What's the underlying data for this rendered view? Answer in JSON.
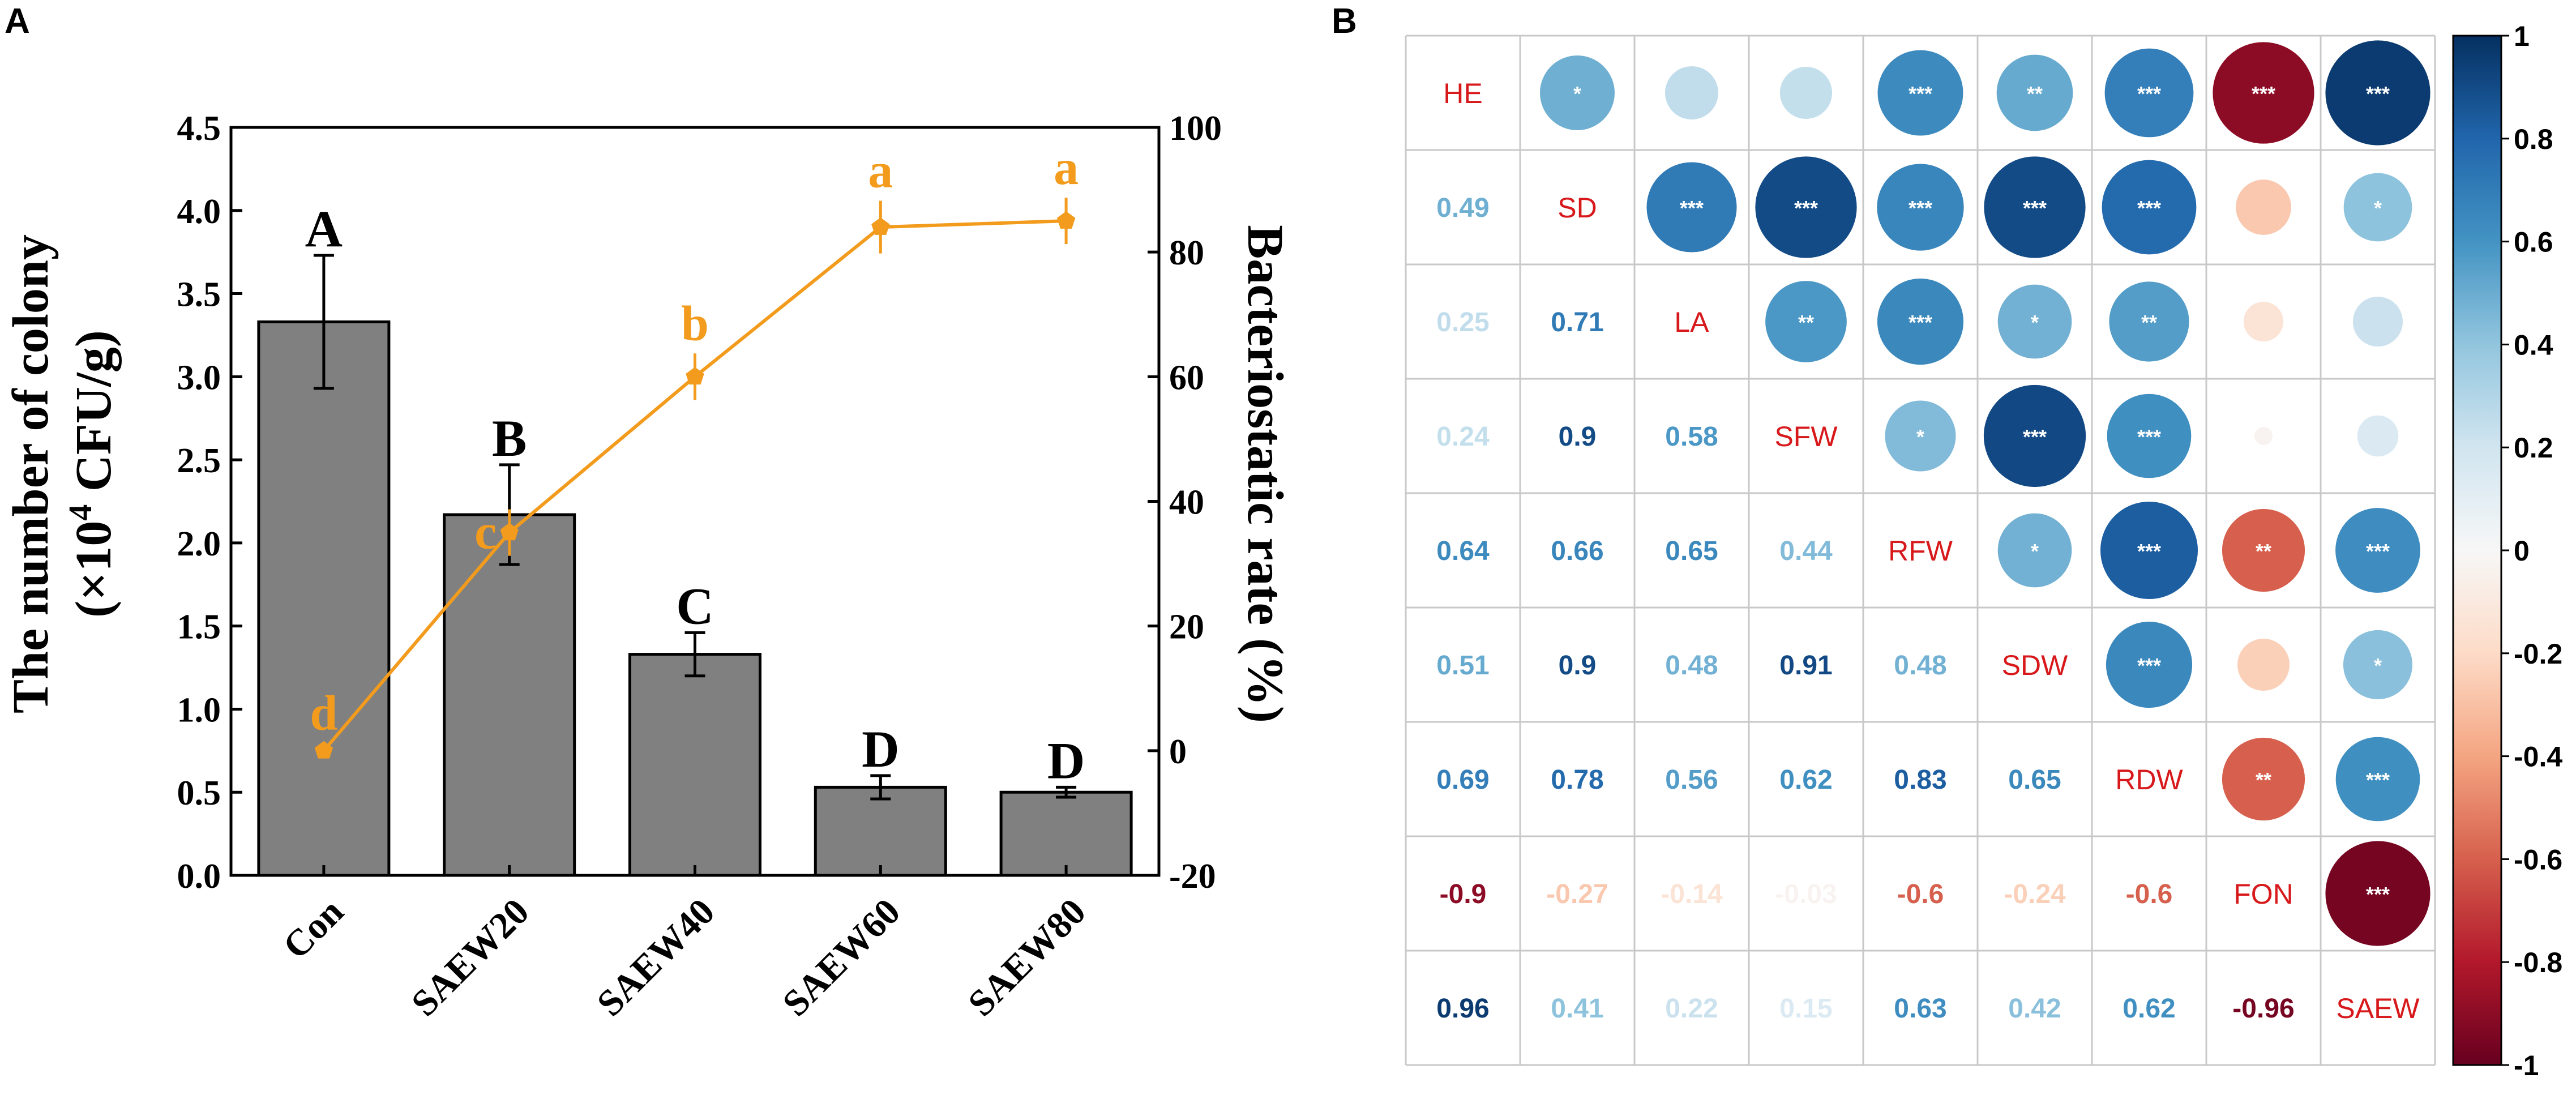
{
  "panels": {
    "a": {
      "label": "A"
    },
    "b": {
      "label": "B"
    }
  },
  "chart_data": [
    {
      "type": "bar",
      "panel": "A",
      "title": "",
      "categories": [
        "Con",
        "SAEW20",
        "SAEW40",
        "SAEW60",
        "SAEW80"
      ],
      "ylabel_line1": "The number of colony",
      "ylabel_line2_prefix": "(×10",
      "ylabel_line2_sup": "4",
      "ylabel_line2_suffix": " CFU/g)",
      "y2label": "Bacteriostatic rate (%)",
      "ylim": [
        0,
        4.5
      ],
      "yticks": [
        "0.0",
        "0.5",
        "1.0",
        "1.5",
        "2.0",
        "2.5",
        "3.0",
        "3.5",
        "4.0",
        "4.5"
      ],
      "y2lim": [
        -20,
        100
      ],
      "y2ticks": [
        "-20",
        "0",
        "20",
        "40",
        "60",
        "80",
        "100"
      ],
      "series": [
        {
          "name": "The number of colony (×10^4 CFU/g)",
          "kind": "bar",
          "axis": "left",
          "color": "#808080",
          "values": [
            3.33,
            2.17,
            1.33,
            0.53,
            0.5
          ],
          "errors": [
            0.4,
            0.3,
            0.13,
            0.07,
            0.03
          ],
          "letters": [
            "A",
            "B",
            "C",
            "D",
            "D"
          ]
        },
        {
          "name": "Bacteriostatic rate (%)",
          "kind": "line",
          "axis": "right",
          "color": "#F29B1D",
          "values": [
            0,
            35,
            60,
            84,
            85
          ],
          "errors": [
            0.5,
            3,
            3,
            3.5,
            3
          ],
          "letters": [
            "d",
            "c",
            "b",
            "a",
            "a"
          ]
        }
      ]
    },
    {
      "type": "heatmap",
      "panel": "B",
      "variables": [
        "HE",
        "SD",
        "LA",
        "SFW",
        "RFW",
        "SDW",
        "RDW",
        "FON",
        "SAEW"
      ],
      "matrix": [
        [
          1,
          0.49,
          0.25,
          0.24,
          0.64,
          0.51,
          0.69,
          -0.9,
          0.96
        ],
        [
          0.49,
          1,
          0.71,
          0.9,
          0.66,
          0.9,
          0.78,
          -0.27,
          0.41
        ],
        [
          0.25,
          0.71,
          1,
          0.58,
          0.65,
          0.48,
          0.56,
          -0.14,
          0.22
        ],
        [
          0.24,
          0.9,
          0.58,
          1,
          0.44,
          0.91,
          0.62,
          -0.03,
          0.15
        ],
        [
          0.64,
          0.66,
          0.65,
          0.44,
          1,
          0.48,
          0.83,
          -0.6,
          0.63
        ],
        [
          0.51,
          0.9,
          0.48,
          0.91,
          0.48,
          1,
          0.65,
          -0.24,
          0.42
        ],
        [
          0.69,
          0.78,
          0.56,
          0.62,
          0.83,
          0.65,
          1,
          -0.6,
          0.62
        ],
        [
          -0.9,
          -0.27,
          -0.14,
          -0.03,
          -0.6,
          -0.24,
          -0.6,
          1,
          -0.96
        ],
        [
          0.96,
          0.41,
          0.22,
          0.15,
          0.63,
          0.42,
          0.62,
          -0.96,
          1
        ]
      ],
      "lower_labels": [
        [],
        [
          "0.49"
        ],
        [
          "0.25",
          "0.71"
        ],
        [
          "0.24",
          "0.9",
          "0.58"
        ],
        [
          "0.64",
          "0.66",
          "0.65",
          "0.44"
        ],
        [
          "0.51",
          "0.9",
          "0.48",
          "0.91",
          "0.48"
        ],
        [
          "0.69",
          "0.78",
          "0.56",
          "0.62",
          "0.83",
          "0.65"
        ],
        [
          "-0.9",
          "-0.27",
          "-0.14",
          "-0.03",
          "-0.6",
          "-0.24",
          "-0.6"
        ],
        [
          "0.96",
          "0.41",
          "0.22",
          "0.15",
          "0.63",
          "0.42",
          "0.62",
          "-0.96"
        ]
      ],
      "significance": [
        [
          "",
          "*",
          "",
          "",
          "***",
          "**",
          "***",
          "***",
          "***"
        ],
        [
          "*",
          "",
          "***",
          "***",
          "***",
          "***",
          "***",
          "",
          "*"
        ],
        [
          "",
          "***",
          "",
          "**",
          "***",
          "*",
          "**",
          "",
          ""
        ],
        [
          "",
          "***",
          "**",
          "",
          "*",
          "***",
          "***",
          "",
          ""
        ],
        [
          "***",
          "***",
          "***",
          "*",
          "",
          "*",
          "***",
          "**",
          "***"
        ],
        [
          "**",
          "***",
          "*",
          "***",
          "*",
          "",
          "***",
          "",
          "*"
        ],
        [
          "***",
          "***",
          "**",
          "***",
          "***",
          "***",
          "",
          "**",
          "***"
        ],
        [
          "***",
          "",
          "",
          "",
          "**",
          "",
          "**",
          "",
          "***"
        ],
        [
          "***",
          "*",
          "",
          "",
          "***",
          "*",
          "***",
          "***",
          ""
        ]
      ],
      "colorbar": {
        "range": [
          -1,
          1
        ],
        "ticks": [
          "1",
          "0.8",
          "0.6",
          "0.4",
          "0.2",
          "0",
          "-0.2",
          "-0.4",
          "-0.6",
          "-0.8",
          "-1"
        ]
      },
      "colors": {
        "positive": "#053061",
        "neutral": "#F7F7F7",
        "negative": "#67001F",
        "diag_label": "#D7191C",
        "grid": "#C8C8C8"
      }
    }
  ]
}
